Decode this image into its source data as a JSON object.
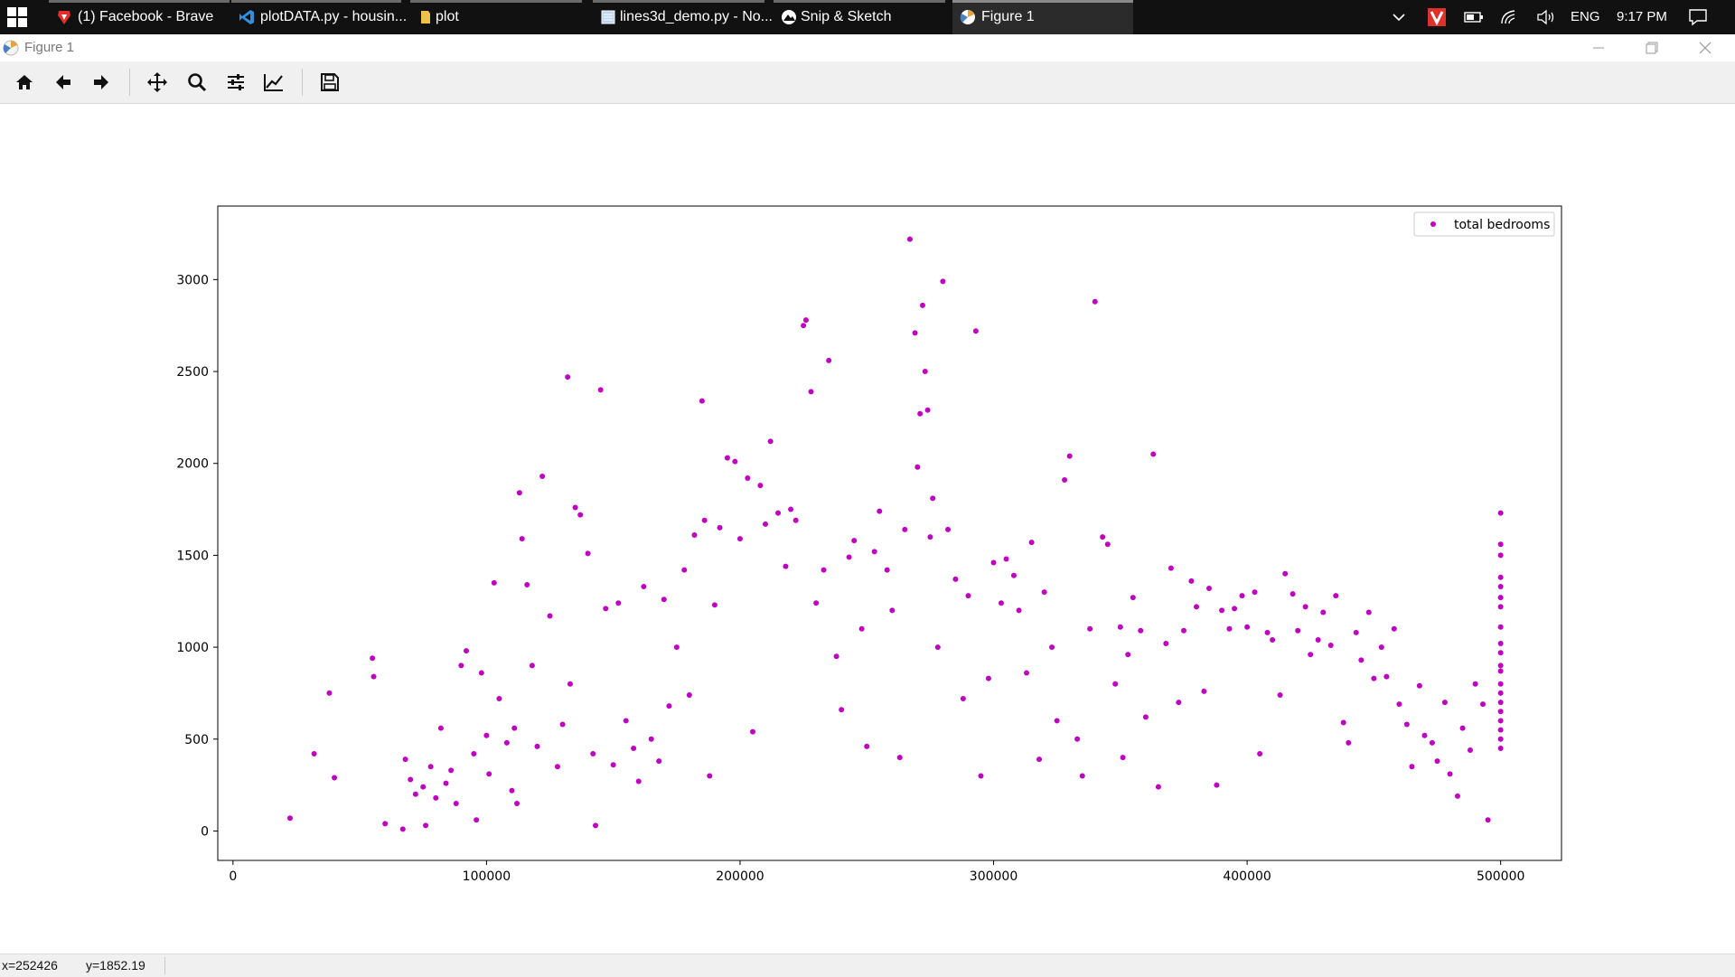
{
  "taskbar": {
    "tabs": [
      {
        "label": "(1) Facebook - Brave",
        "icon": "brave-icon"
      },
      {
        "label": "plotDATA.py - housin...",
        "icon": "vscode-icon"
      },
      {
        "label": "plot",
        "icon": "folder-icon"
      },
      {
        "label": "lines3d_demo.py - No...",
        "icon": "notepad-icon"
      },
      {
        "label": "Snip & Sketch",
        "icon": "snip-sketch-icon"
      },
      {
        "label": "Figure 1",
        "icon": "matplotlib-icon"
      }
    ],
    "language": "ENG",
    "time": "9:17 PM"
  },
  "window": {
    "title": "Figure 1"
  },
  "toolbar": {
    "buttons": [
      "home-icon",
      "back-arrow-icon",
      "forward-arrow-icon",
      "pan-icon",
      "zoom-icon",
      "configure-subplots-icon",
      "edit-axis-icon",
      "save-icon"
    ]
  },
  "status": {
    "x_readout": "x=252426",
    "y_readout": "y=1852.19"
  },
  "colors": {
    "marker": "#bf00bf",
    "accent_red": "#e0302a"
  },
  "chart_data": {
    "type": "scatter",
    "title": "",
    "xlabel": "",
    "ylabel": "",
    "xlim": [
      -6000,
      524000
    ],
    "ylim": [
      -160,
      3400
    ],
    "xticks": [
      0,
      100000,
      200000,
      300000,
      400000,
      500000
    ],
    "yticks": [
      0,
      500,
      1000,
      1500,
      2000,
      2500,
      3000
    ],
    "grid": false,
    "legend": "top-right",
    "series": [
      {
        "name": "total bedrooms",
        "marker": "dot",
        "color": "#bf00bf",
        "x": [
          22500,
          32000,
          38000,
          40000,
          55000,
          55500,
          60000,
          67000,
          68000,
          70000,
          72000,
          75000,
          76000,
          78000,
          80000,
          82000,
          84000,
          86000,
          88000,
          90000,
          92000,
          95000,
          96000,
          98000,
          100000,
          101000,
          103000,
          105000,
          108000,
          110000,
          111000,
          112000,
          113000,
          114000,
          116000,
          118000,
          120000,
          122000,
          125000,
          128000,
          130000,
          132000,
          133000,
          135000,
          137000,
          140000,
          142000,
          143000,
          145000,
          147000,
          150000,
          152000,
          155000,
          158000,
          160000,
          162000,
          165000,
          168000,
          170000,
          172000,
          175000,
          178000,
          180000,
          182000,
          185000,
          186000,
          188000,
          190000,
          192000,
          195000,
          198000,
          200000,
          203000,
          205000,
          208000,
          210000,
          212000,
          215000,
          218000,
          220000,
          222000,
          225000,
          226000,
          228000,
          230000,
          233000,
          235000,
          238000,
          240000,
          243000,
          245000,
          248000,
          250000,
          253000,
          255000,
          258000,
          260000,
          263000,
          265000,
          267000,
          269000,
          270000,
          271000,
          272000,
          273000,
          274000,
          275000,
          276000,
          278000,
          280000,
          282000,
          285000,
          288000,
          290000,
          293000,
          295000,
          298000,
          300000,
          303000,
          305000,
          308000,
          310000,
          313000,
          315000,
          318000,
          320000,
          323000,
          325000,
          328000,
          330000,
          333000,
          335000,
          338000,
          340000,
          343000,
          345000,
          348000,
          350000,
          351000,
          353000,
          355000,
          358000,
          360000,
          363000,
          365000,
          368000,
          370000,
          373000,
          375000,
          378000,
          380000,
          383000,
          385000,
          388000,
          390000,
          393000,
          395000,
          398000,
          400000,
          403000,
          405000,
          408000,
          410000,
          413000,
          415000,
          418000,
          420000,
          423000,
          425000,
          428000,
          430000,
          433000,
          435000,
          438000,
          440000,
          443000,
          445000,
          448000,
          450000,
          453000,
          455000,
          458000,
          460000,
          463000,
          465000,
          468000,
          470000,
          473000,
          475000,
          478000,
          480000,
          483000,
          485000,
          488000,
          490000,
          493000,
          495000,
          500000,
          500000,
          500000,
          500000,
          500000,
          500000,
          500000,
          500000,
          500000,
          500000,
          500000,
          500000,
          500000,
          500000,
          500000,
          500000,
          500000,
          500000,
          500000,
          500000
        ],
        "y": [
          70,
          420,
          750,
          290,
          940,
          840,
          40,
          10,
          390,
          280,
          200,
          240,
          30,
          350,
          180,
          560,
          260,
          330,
          150,
          900,
          980,
          420,
          60,
          860,
          520,
          310,
          1350,
          720,
          480,
          220,
          560,
          150,
          1840,
          1590,
          1340,
          900,
          460,
          1930,
          1170,
          350,
          580,
          2470,
          800,
          1760,
          1720,
          1510,
          420,
          30,
          2400,
          1210,
          360,
          1240,
          600,
          450,
          270,
          1330,
          500,
          380,
          1260,
          680,
          1000,
          1420,
          740,
          1610,
          2340,
          1690,
          300,
          1230,
          1650,
          2030,
          2010,
          1590,
          1920,
          540,
          1880,
          1670,
          2120,
          1730,
          1440,
          1750,
          1690,
          2750,
          2780,
          2390,
          1240,
          1420,
          2560,
          950,
          660,
          1490,
          1580,
          1100,
          460,
          1520,
          1740,
          1420,
          1200,
          400,
          1640,
          3220,
          2710,
          1980,
          2270,
          2860,
          2500,
          2290,
          1600,
          1810,
          1000,
          2990,
          1640,
          1370,
          720,
          1280,
          2720,
          300,
          830,
          1460,
          1240,
          1480,
          1390,
          1200,
          860,
          1570,
          390,
          1300,
          1000,
          600,
          1910,
          2040,
          500,
          300,
          1100,
          2880,
          1600,
          1560,
          800,
          1110,
          400,
          960,
          1270,
          1090,
          620,
          2050,
          240,
          1020,
          1430,
          700,
          1090,
          1360,
          1220,
          760,
          1320,
          250,
          1200,
          1100,
          1210,
          1280,
          1110,
          1300,
          420,
          1080,
          1040,
          740,
          1400,
          1290,
          1090,
          1220,
          960,
          1040,
          1190,
          1010,
          1280,
          590,
          480,
          1080,
          930,
          1190,
          830,
          1000,
          840,
          1100,
          690,
          580,
          350,
          790,
          520,
          480,
          380,
          700,
          310,
          190,
          560,
          440,
          800,
          690,
          60,
          1730,
          1560,
          1500,
          1380,
          1330,
          1270,
          1220,
          1110,
          1020,
          970,
          900,
          870,
          800,
          750,
          700,
          650,
          600,
          550,
          500,
          450
        ]
      }
    ]
  }
}
